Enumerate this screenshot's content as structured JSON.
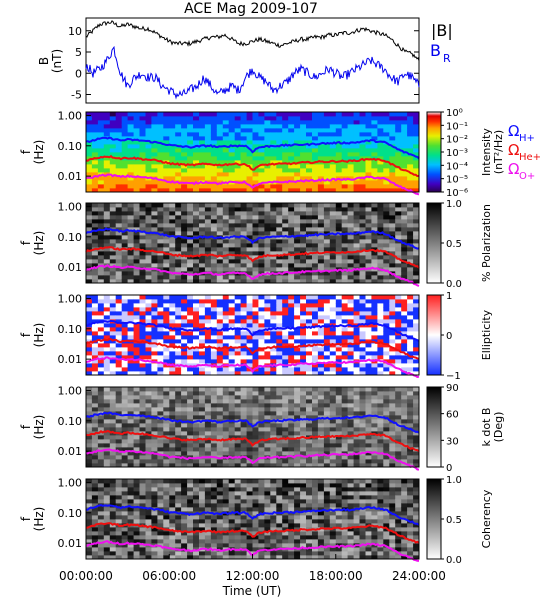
{
  "chart_data": [
    {
      "id": "p0",
      "type": "line",
      "title": "ACE Mag 2009-107",
      "ylabel": "B",
      "yunit": "(nT)",
      "ylim": [
        -7,
        13
      ],
      "yticks": [
        10,
        5,
        0,
        -5
      ],
      "series": [
        {
          "name": "|B|",
          "color": "#000000",
          "x": [
            0,
            1,
            1.8,
            2.5,
            3,
            3.5,
            4,
            4.5,
            5,
            5.5,
            6,
            6.5,
            7,
            7.5,
            8,
            8.5,
            9,
            9.5,
            10,
            10.5,
            11,
            11.5,
            12,
            12.5,
            13,
            13.5,
            14,
            14.5,
            15,
            15.5,
            16,
            16.5,
            17,
            17.5,
            18,
            18.5,
            19,
            19.5,
            20,
            20.5,
            21,
            21.5,
            22,
            22.5,
            23,
            23.5,
            24
          ],
          "y": [
            8.5,
            11.5,
            12,
            11,
            11.5,
            11,
            10.5,
            10.5,
            9.5,
            8.5,
            7.5,
            7,
            7,
            7,
            7.5,
            8,
            8.5,
            8.5,
            9,
            8,
            7,
            7,
            7.5,
            8,
            7.5,
            7,
            6.5,
            7,
            7.5,
            8,
            8,
            8.5,
            8.5,
            9,
            9,
            9.5,
            9.5,
            10,
            10.5,
            10,
            9.5,
            9,
            8,
            6.5,
            5,
            4.5,
            3
          ]
        },
        {
          "name": "B",
          "sub": "R",
          "color": "#0000ee",
          "x": [
            0,
            0.5,
            1,
            1.5,
            2,
            2.5,
            3,
            3.5,
            4,
            4.5,
            5,
            5.5,
            6,
            6.5,
            7,
            7.5,
            8,
            8.5,
            9,
            9.5,
            10,
            10.5,
            11,
            11.5,
            12,
            12.5,
            13,
            13.5,
            14,
            14.5,
            15,
            15.5,
            16,
            16.5,
            17,
            17.5,
            18,
            18.5,
            19,
            19.5,
            20,
            20.5,
            21,
            21.5,
            22,
            22.5,
            23,
            23.5,
            24
          ],
          "y": [
            2,
            0,
            1,
            3,
            6,
            0,
            -3,
            -1,
            0,
            -1,
            -1,
            -3,
            -4,
            -5,
            -5,
            -4,
            -3,
            -1,
            -3,
            -5,
            -4,
            -3,
            -4,
            -1,
            1,
            -1,
            -2,
            -4,
            -3,
            -2,
            0,
            1,
            0,
            -1,
            0,
            1,
            0,
            -1,
            0,
            1,
            2,
            3,
            2,
            1,
            -1,
            -2,
            0,
            -1,
            -3
          ]
        }
      ]
    },
    {
      "id": "p1",
      "type": "heatmap",
      "ylabel": "f",
      "yunit": "(Hz)",
      "ylim": [
        0.003,
        1.3
      ],
      "ytick_labels": [
        "1.00",
        "0.10",
        "0.01"
      ],
      "colorbar": {
        "label": "Intensity",
        "unit": "(nT²/Hz)",
        "scale": "log",
        "range": [
          1e-06,
          1
        ],
        "ticks": [
          "10⁰",
          "10⁻¹",
          "10⁻²",
          "10⁻³",
          "10⁻⁴",
          "10⁻⁵",
          "10⁻⁶"
        ]
      }
    },
    {
      "id": "p2",
      "type": "heatmap",
      "ylabel": "f",
      "yunit": "(Hz)",
      "ylim": [
        0.003,
        1.3
      ],
      "ytick_labels": [
        "1.00",
        "0.10",
        "0.01"
      ],
      "colorbar": {
        "label": "% Polarization",
        "range": [
          0,
          1
        ],
        "ticks": [
          "1.0",
          "0.5",
          "0.0"
        ]
      }
    },
    {
      "id": "p3",
      "type": "heatmap",
      "ylabel": "f",
      "yunit": "(Hz)",
      "ylim": [
        0.003,
        1.3
      ],
      "ytick_labels": [
        "1.00",
        "0.10",
        "0.01"
      ],
      "colorbar": {
        "label": "Ellipticity",
        "range": [
          -1,
          1
        ],
        "ticks": [
          "1",
          "0",
          "−1"
        ]
      }
    },
    {
      "id": "p4",
      "type": "heatmap",
      "ylabel": "f",
      "yunit": "(Hz)",
      "ylim": [
        0.003,
        1.3
      ],
      "ytick_labels": [
        "1.00",
        "0.10",
        "0.01"
      ],
      "colorbar": {
        "label": "k dot B",
        "unit": "(Deg)",
        "range": [
          0,
          90
        ],
        "ticks": [
          "90",
          "60",
          "30",
          "0"
        ]
      }
    },
    {
      "id": "p5",
      "type": "heatmap",
      "ylabel": "f",
      "yunit": "(Hz)",
      "ylim": [
        0.003,
        1.3
      ],
      "ytick_labels": [
        "1.00",
        "0.10",
        "0.01"
      ],
      "colorbar": {
        "label": "Coherency",
        "range": [
          0,
          1
        ],
        "ticks": [
          "1.0",
          "0.5",
          "0.0"
        ]
      }
    },
    {
      "id": "gyro",
      "type": "line",
      "x": [
        0,
        0.5,
        1,
        1.5,
        2,
        2.5,
        3,
        3.5,
        4,
        4.5,
        5,
        5.5,
        6,
        6.5,
        7,
        7.5,
        8,
        8.5,
        9,
        9.5,
        10,
        10.5,
        11,
        11.5,
        12,
        12.5,
        13,
        13.5,
        14,
        14.5,
        15,
        15.5,
        16,
        16.5,
        17,
        17.5,
        18,
        18.5,
        19,
        19.5,
        20,
        20.5,
        21,
        21.5,
        22,
        22.5,
        23,
        23.5,
        24
      ],
      "series": [
        {
          "name": "Ω",
          "sub": "H+",
          "color": "#1010ff",
          "values": [
            0.13,
            0.15,
            0.17,
            0.18,
            0.17,
            0.15,
            0.16,
            0.155,
            0.15,
            0.14,
            0.13,
            0.12,
            0.105,
            0.1,
            0.095,
            0.09,
            0.095,
            0.1,
            0.1,
            0.09,
            0.095,
            0.1,
            0.1,
            0.1,
            0.065,
            0.09,
            0.095,
            0.1,
            0.1,
            0.105,
            0.105,
            0.11,
            0.11,
            0.115,
            0.12,
            0.12,
            0.125,
            0.125,
            0.125,
            0.13,
            0.14,
            0.15,
            0.14,
            0.13,
            0.1,
            0.075,
            0.06,
            0.05,
            0.04
          ]
        },
        {
          "name": "Ω",
          "sub": "He+",
          "color": "#ee1010",
          "values": [
            0.033,
            0.037,
            0.042,
            0.045,
            0.042,
            0.038,
            0.04,
            0.039,
            0.037,
            0.035,
            0.033,
            0.03,
            0.026,
            0.025,
            0.024,
            0.023,
            0.024,
            0.025,
            0.025,
            0.023,
            0.024,
            0.025,
            0.025,
            0.025,
            0.016,
            0.022,
            0.024,
            0.025,
            0.025,
            0.026,
            0.026,
            0.028,
            0.028,
            0.029,
            0.03,
            0.03,
            0.031,
            0.031,
            0.031,
            0.033,
            0.035,
            0.037,
            0.035,
            0.033,
            0.025,
            0.019,
            0.015,
            0.012,
            0.01
          ]
        },
        {
          "name": "Ω",
          "sub": "O+",
          "color": "#ee10ee",
          "values": [
            0.0083,
            0.0093,
            0.0105,
            0.011,
            0.0105,
            0.0095,
            0.01,
            0.0097,
            0.0093,
            0.0088,
            0.0083,
            0.0075,
            0.0066,
            0.0063,
            0.006,
            0.0057,
            0.006,
            0.0063,
            0.0063,
            0.0057,
            0.006,
            0.0063,
            0.0063,
            0.0063,
            0.004,
            0.0057,
            0.006,
            0.0063,
            0.0063,
            0.0066,
            0.0066,
            0.007,
            0.007,
            0.0072,
            0.0075,
            0.0075,
            0.0078,
            0.0078,
            0.0078,
            0.0083,
            0.0088,
            0.0093,
            0.0088,
            0.0083,
            0.0063,
            0.0047,
            0.0038,
            0.0031,
            0.0025
          ]
        }
      ]
    }
  ],
  "xaxis": {
    "label": "Time (UT)",
    "range": [
      0,
      24
    ],
    "ticks": [
      0,
      6,
      12,
      18,
      24
    ],
    "tick_labels": [
      "00:00:00",
      "06:00:00",
      "12:00:00",
      "18:00:00",
      "24:00:00"
    ]
  },
  "colors": {
    "intensity_scale": [
      "#2a0050",
      "#4000c0",
      "#0050ff",
      "#00c0ff",
      "#00e08a",
      "#50e030",
      "#e8ef00",
      "#ffa000",
      "#ff3000",
      "#e00000",
      "#ffffff"
    ],
    "ellipticity_scale": [
      "#1530ff",
      "#ffffff",
      "#ff2020"
    ]
  }
}
